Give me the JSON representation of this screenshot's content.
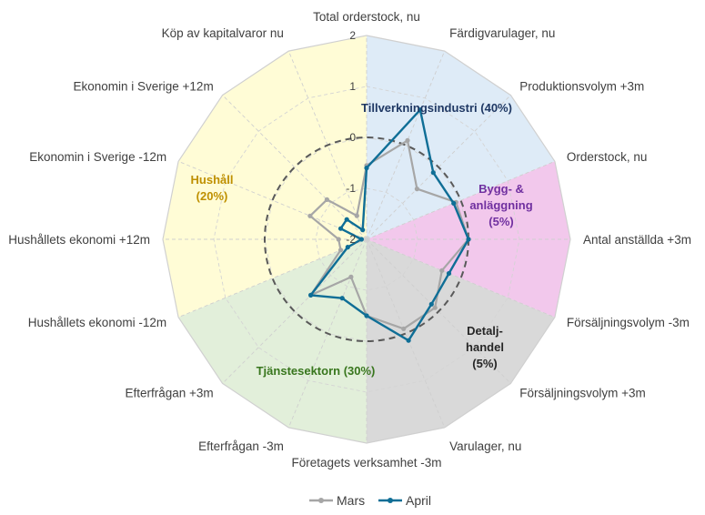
{
  "chart_data": {
    "type": "radar",
    "title": "",
    "axes": [
      "Total orderstock, nu",
      "Färdigvarulager, nu",
      "Produktionsvolym +3m",
      "Orderstock, nu",
      "Antal anställda +3m",
      "Försäljningsvolym -3m",
      "Försäljningsvolym +3m",
      "Varulager, nu",
      "Företagets verksamhet -3m",
      "Efterfrågan -3m",
      "Efterfrågan +3m",
      "Hushållets ekonomi -12m",
      "Hushållets ekonomi +12m",
      "Ekonomin i Sverige -12m",
      "Ekonomin i Sverige +12m",
      "Köp av kapitalvaror nu"
    ],
    "rlim": [
      -2,
      2
    ],
    "ticks": [
      "-2",
      "-1",
      "0",
      "1",
      "2"
    ],
    "tick_values": [
      -2,
      -1,
      0,
      1,
      2
    ],
    "reference_circle": 0,
    "series": [
      {
        "name": "Mars",
        "color": "#a6a6a6",
        "values": [
          -0.55,
          0.1,
          -0.6,
          -0.1,
          0.0,
          -0.4,
          -0.1,
          -0.1,
          -0.5,
          -1.2,
          -0.45,
          -1.45,
          -1.45,
          -0.8,
          -0.9,
          -1.5
        ]
      },
      {
        "name": "April",
        "color": "#0f6e96",
        "values": [
          -0.6,
          0.75,
          -0.15,
          -0.15,
          0.0,
          -0.25,
          -0.2,
          0.15,
          -0.5,
          -0.75,
          -0.45,
          -1.6,
          -1.9,
          -1.45,
          -1.45,
          -1.8
        ]
      }
    ],
    "sectors": [
      {
        "label_lines": [
          "Tillverkningsindustri (40%)"
        ],
        "color": "#deebf7",
        "text_color": "#1f3864",
        "axes_range": [
          0,
          3
        ]
      },
      {
        "label_lines": [
          "Bygg- &",
          "anläggning",
          "(5%)"
        ],
        "color": "#f2c8ec",
        "text_color": "#7030a0",
        "axes_range": [
          3,
          5
        ]
      },
      {
        "label_lines": [
          "Detalj-",
          "handel",
          "(5%)"
        ],
        "color": "#d9d9d9",
        "text_color": "#262626",
        "axes_range": [
          5,
          8
        ]
      },
      {
        "label_lines": [
          "Tjänstesektorn (30%)"
        ],
        "color": "#e2efda",
        "text_color": "#38761d",
        "axes_range": [
          8,
          11
        ]
      },
      {
        "label_lines": [
          "Hushåll",
          "(20%)"
        ],
        "color": "#fffcd6",
        "text_color": "#bf9000",
        "axes_range": [
          11,
          16
        ]
      }
    ],
    "legend": {
      "position": "bottom",
      "entries": [
        "Mars",
        "April"
      ]
    },
    "grid": true
  }
}
